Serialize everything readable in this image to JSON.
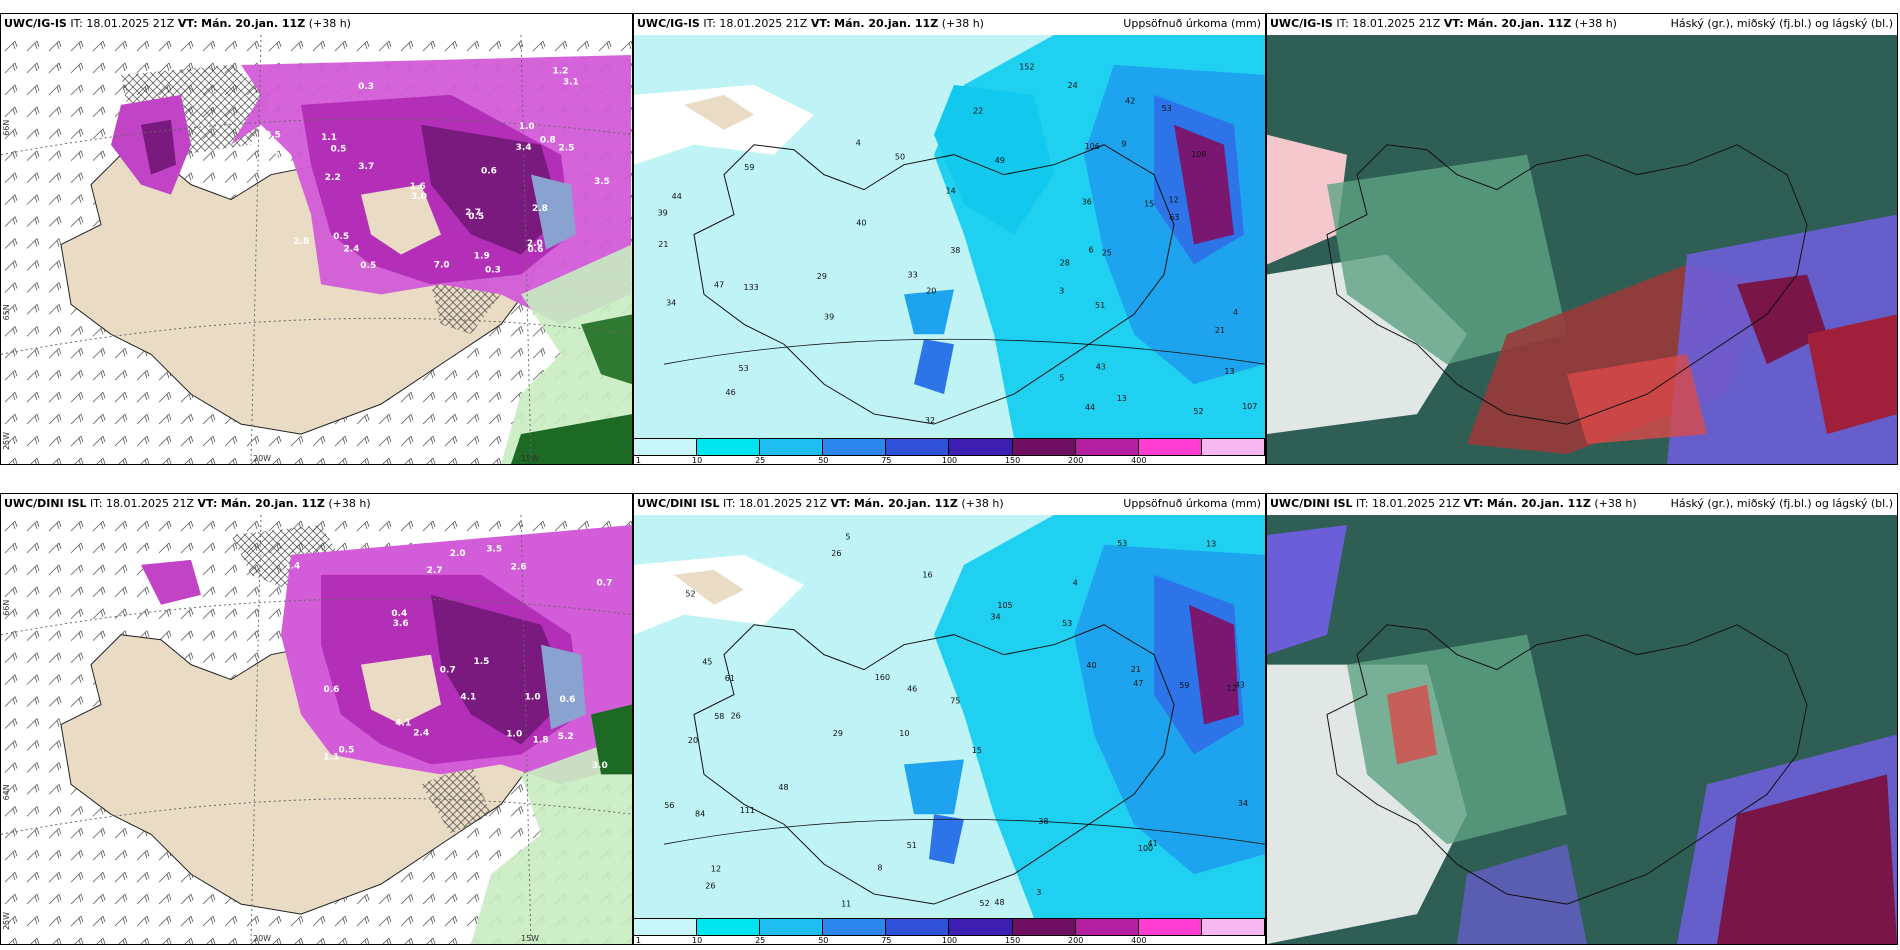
{
  "row1": {
    "model_name": "UWC/IG-IS",
    "it_label": "IT:",
    "it_value": "18.01.2025 21Z",
    "vt_label": "VT:",
    "vt_value": "Mán. 20.jan. 11Z",
    "lead": "(+38 h)"
  },
  "row2": {
    "model_name": "UWC/DINI ISL",
    "it_label": "IT:",
    "it_value": "18.01.2025 21Z",
    "vt_label": "VT:",
    "vt_value": "Mán. 20.jan. 11Z",
    "lead": "(+38 h)"
  },
  "precip_title": "Uppsöfnuð úrkoma (mm)",
  "cloud_title": "Háský (gr.), miðský (fj.bl.) og lágský (bl.)",
  "legend_ticks": [
    "1",
    "10",
    "25",
    "50",
    "75",
    "100",
    "150",
    "200",
    "400"
  ],
  "legend_colors": [
    "#c8f6f9",
    "#00e6f0",
    "#1fbdf0",
    "#2c86ee",
    "#3050d8",
    "#3c1fb0",
    "#6e0f62",
    "#b41ea0",
    "#ff3cd0",
    "#f7b7f0"
  ],
  "axis_labels": {
    "lat66": "66N",
    "lat64": "64N",
    "lat65": "65N",
    "w20": "20W",
    "w15": "15W",
    "w25": "25W"
  },
  "snow_values_row1": [
    "0.3",
    "0.3",
    "0.5",
    "1.1",
    "0.8",
    "1.9",
    "3.5",
    "3.7",
    "3.0",
    "2.4",
    "2.8",
    "2.5",
    "1.6",
    "2.7",
    "3.4",
    "1.2",
    "1.6",
    "3.1",
    "2.8",
    "2.5",
    "2.0",
    "0.5",
    "0.5",
    "0.6",
    "0.6",
    "1.0",
    "2.2",
    "0.5",
    "7.0"
  ],
  "snow_values_row2": [
    "1.1",
    "0.6",
    "1.5",
    "4.1",
    "2.7",
    "3.5",
    "5.2",
    "2.6",
    "1.8",
    "4.1",
    "3.0",
    "3.6",
    "2.4",
    "2.0",
    "1.0",
    "0.4",
    "1.0",
    "0.6",
    "0.7",
    "0.7",
    "1.4",
    "0.5"
  ],
  "precip_values_row1": [
    "3",
    "4",
    "15",
    "21",
    "5",
    "9",
    "12",
    "14",
    "13",
    "13",
    "6",
    "28",
    "34",
    "51",
    "39",
    "52",
    "53",
    "47",
    "42",
    "50",
    "20",
    "21",
    "36",
    "24",
    "63",
    "53",
    "59",
    "106",
    "107",
    "133",
    "108",
    "152",
    "44",
    "43",
    "40",
    "46",
    "49",
    "38",
    "25",
    "44",
    "33",
    "29",
    "22",
    "32",
    "39",
    "4"
  ],
  "precip_values_row2": [
    "5",
    "4",
    "12",
    "10",
    "15",
    "26",
    "52",
    "53",
    "20",
    "34",
    "75",
    "26",
    "26",
    "29",
    "52",
    "48",
    "51",
    "53",
    "40",
    "48",
    "61",
    "58",
    "43",
    "59",
    "56",
    "45",
    "46",
    "47",
    "41",
    "84",
    "100",
    "105",
    "111",
    "160",
    "38",
    "34",
    "21",
    "8",
    "13",
    "16",
    "12",
    "11",
    "3"
  ]
}
